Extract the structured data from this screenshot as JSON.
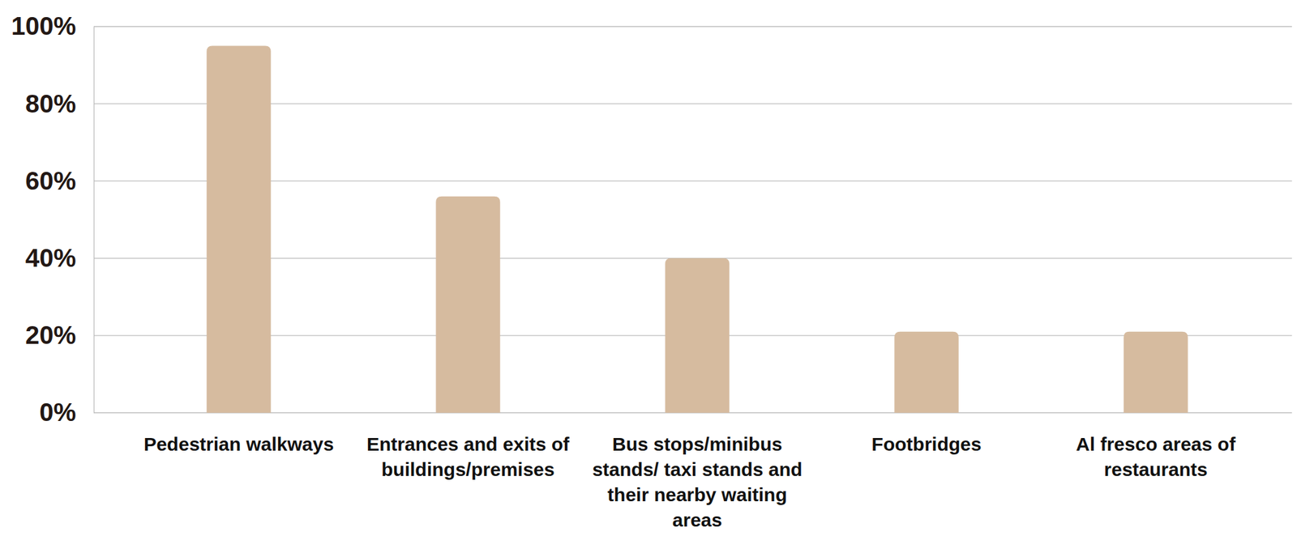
{
  "chart_data": {
    "type": "bar",
    "categories": [
      "Pedestrian walkways",
      "Entrances and exits of buildings/premises",
      "Bus stops/minibus stands/ taxi stands and their nearby waiting areas",
      "Footbridges",
      "Al fresco areas of restaurants"
    ],
    "values": [
      95,
      56,
      40,
      21,
      21
    ],
    "color": "#d6bb9f",
    "ylim": [
      0,
      100
    ],
    "yticks": [
      {
        "value": 0,
        "label": "0%"
      },
      {
        "value": 20,
        "label": "20%"
      },
      {
        "value": 40,
        "label": "40%"
      },
      {
        "value": 60,
        "label": "60%"
      },
      {
        "value": 80,
        "label": "80%"
      },
      {
        "value": 100,
        "label": "100%"
      }
    ],
    "grid": true
  }
}
